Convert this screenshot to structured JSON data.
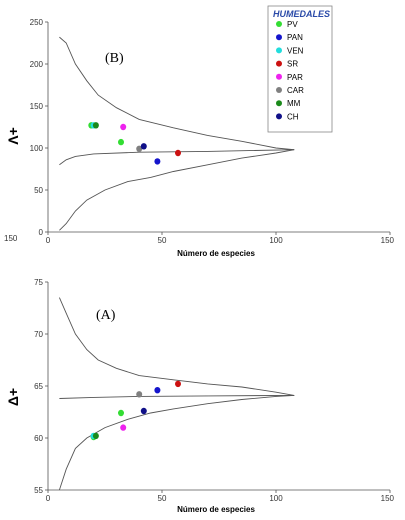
{
  "legend": {
    "title": "HUMEDALES",
    "entries": [
      {
        "name": "PV",
        "color": "#33dd33"
      },
      {
        "name": "PAN",
        "color": "#1515cc"
      },
      {
        "name": "VEN",
        "color": "#22dddd"
      },
      {
        "name": "SR",
        "color": "#cc1111"
      },
      {
        "name": "PAR",
        "color": "#ee22ee"
      },
      {
        "name": "CAR",
        "color": "#808080"
      },
      {
        "name": "MM",
        "color": "#1a8a1a"
      },
      {
        "name": "CH",
        "color": "#101088"
      }
    ]
  },
  "chart_data": [
    {
      "type": "scatter",
      "panel_label": "(B)",
      "xlabel": "Número de especies",
      "ylabel": "Λ+",
      "xlim": [
        0,
        150
      ],
      "ylim": [
        0,
        250
      ],
      "xticks": [
        "0",
        "50",
        "100",
        "150"
      ],
      "yticks": [
        "0",
        "50",
        "100",
        "150",
        "200",
        "250"
      ],
      "extra_left_label": "150",
      "funnel": {
        "upper": [
          [
            5,
            232
          ],
          [
            8,
            225
          ],
          [
            12,
            200
          ],
          [
            17,
            180
          ],
          [
            22,
            163
          ],
          [
            30,
            148
          ],
          [
            40,
            134
          ],
          [
            55,
            124
          ],
          [
            70,
            115
          ],
          [
            85,
            108
          ],
          [
            100,
            100
          ],
          [
            108,
            98
          ]
        ],
        "lower": [
          [
            5,
            2
          ],
          [
            8,
            10
          ],
          [
            12,
            25
          ],
          [
            17,
            38
          ],
          [
            25,
            50
          ],
          [
            35,
            60
          ],
          [
            45,
            65
          ],
          [
            55,
            72
          ],
          [
            70,
            80
          ],
          [
            85,
            88
          ],
          [
            100,
            94
          ],
          [
            108,
            98
          ]
        ],
        "mean": [
          [
            5,
            80
          ],
          [
            8,
            86
          ],
          [
            12,
            90
          ],
          [
            20,
            93
          ],
          [
            40,
            95
          ],
          [
            70,
            96
          ],
          [
            108,
            98
          ]
        ]
      },
      "series": [
        {
          "name": "PV",
          "points": [
            [
              19,
              127
            ],
            [
              32,
              107
            ]
          ]
        },
        {
          "name": "PAN",
          "points": [
            [
              48,
              84
            ]
          ]
        },
        {
          "name": "VEN",
          "points": [
            [
              20,
              127
            ]
          ]
        },
        {
          "name": "SR",
          "points": [
            [
              57,
              94
            ]
          ]
        },
        {
          "name": "PAR",
          "points": [
            [
              33,
              125
            ]
          ]
        },
        {
          "name": "CAR",
          "points": [
            [
              40,
              99
            ]
          ]
        },
        {
          "name": "MM",
          "points": [
            [
              21,
              127
            ]
          ]
        },
        {
          "name": "CH",
          "points": [
            [
              42,
              102
            ]
          ]
        }
      ]
    },
    {
      "type": "scatter",
      "panel_label": "(A)",
      "xlabel": "Número de especies",
      "ylabel": "Δ+",
      "xlim": [
        0,
        150
      ],
      "ylim": [
        55,
        75
      ],
      "xticks": [
        "0",
        "50",
        "100",
        "150"
      ],
      "yticks": [
        "55",
        "60",
        "65",
        "70",
        "75"
      ],
      "funnel": {
        "upper": [
          [
            5,
            73.5
          ],
          [
            8,
            72
          ],
          [
            12,
            70
          ],
          [
            17,
            68.5
          ],
          [
            22,
            67.5
          ],
          [
            30,
            66.7
          ],
          [
            40,
            66
          ],
          [
            55,
            65.6
          ],
          [
            70,
            65.2
          ],
          [
            85,
            64.9
          ],
          [
            100,
            64.4
          ],
          [
            108,
            64.1
          ]
        ],
        "lower": [
          [
            5,
            55
          ],
          [
            8,
            57
          ],
          [
            12,
            59
          ],
          [
            17,
            60
          ],
          [
            25,
            61
          ],
          [
            35,
            61.8
          ],
          [
            45,
            62.4
          ],
          [
            55,
            62.8
          ],
          [
            70,
            63.3
          ],
          [
            85,
            63.7
          ],
          [
            100,
            64
          ],
          [
            108,
            64.1
          ]
        ],
        "mean": [
          [
            5,
            63.8
          ],
          [
            20,
            63.9
          ],
          [
            40,
            64
          ],
          [
            70,
            64.05
          ],
          [
            108,
            64.1
          ]
        ]
      },
      "series": [
        {
          "name": "PV",
          "points": [
            [
              20,
              60.1
            ],
            [
              32,
              62.4
            ]
          ]
        },
        {
          "name": "PAN",
          "points": [
            [
              48,
              64.6
            ]
          ]
        },
        {
          "name": "VEN",
          "points": [
            [
              20,
              60.2
            ]
          ]
        },
        {
          "name": "SR",
          "points": [
            [
              57,
              65.2
            ]
          ]
        },
        {
          "name": "PAR",
          "points": [
            [
              33,
              61
            ]
          ]
        },
        {
          "name": "CAR",
          "points": [
            [
              40,
              64.2
            ]
          ]
        },
        {
          "name": "MM",
          "points": [
            [
              21,
              60.2
            ]
          ]
        },
        {
          "name": "CH",
          "points": [
            [
              42,
              62.6
            ]
          ]
        }
      ]
    }
  ]
}
